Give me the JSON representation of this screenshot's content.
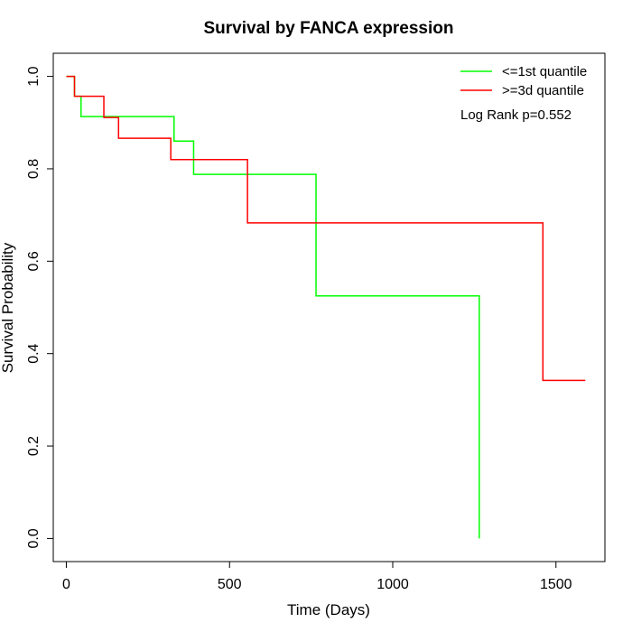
{
  "chart_data": {
    "type": "line",
    "title": "Survival by FANCA expression",
    "xlabel": "Time (Days)",
    "ylabel": "Survival Probability",
    "xlim": [
      -40,
      1650
    ],
    "ylim": [
      -0.05,
      1.05
    ],
    "xticks": [
      0,
      500,
      1000,
      1500
    ],
    "xtick_labels": [
      "0",
      "500",
      "1000",
      "1500"
    ],
    "yticks": [
      0.0,
      0.2,
      0.4,
      0.6,
      0.8,
      1.0
    ],
    "ytick_labels": [
      "0.0",
      "0.2",
      "0.4",
      "0.6",
      "0.8",
      "1.0"
    ],
    "grid": false,
    "legend_position": "top-right",
    "annotation": "Log Rank p=0.552",
    "series": [
      {
        "name": "<=1st quantile",
        "color": "#00ff00",
        "step": true,
        "points": [
          [
            0,
            1.0
          ],
          [
            25,
            0.957
          ],
          [
            45,
            0.913
          ],
          [
            330,
            0.86
          ],
          [
            390,
            0.788
          ],
          [
            765,
            0.525
          ],
          [
            1265,
            0.0
          ]
        ]
      },
      {
        "name": ">=3d quantile",
        "color": "#ff0000",
        "step": true,
        "points": [
          [
            0,
            1.0
          ],
          [
            25,
            0.957
          ],
          [
            115,
            0.911
          ],
          [
            160,
            0.866
          ],
          [
            320,
            0.82
          ],
          [
            555,
            0.683
          ],
          [
            1460,
            0.342
          ],
          [
            1590,
            0.342
          ]
        ]
      }
    ]
  }
}
